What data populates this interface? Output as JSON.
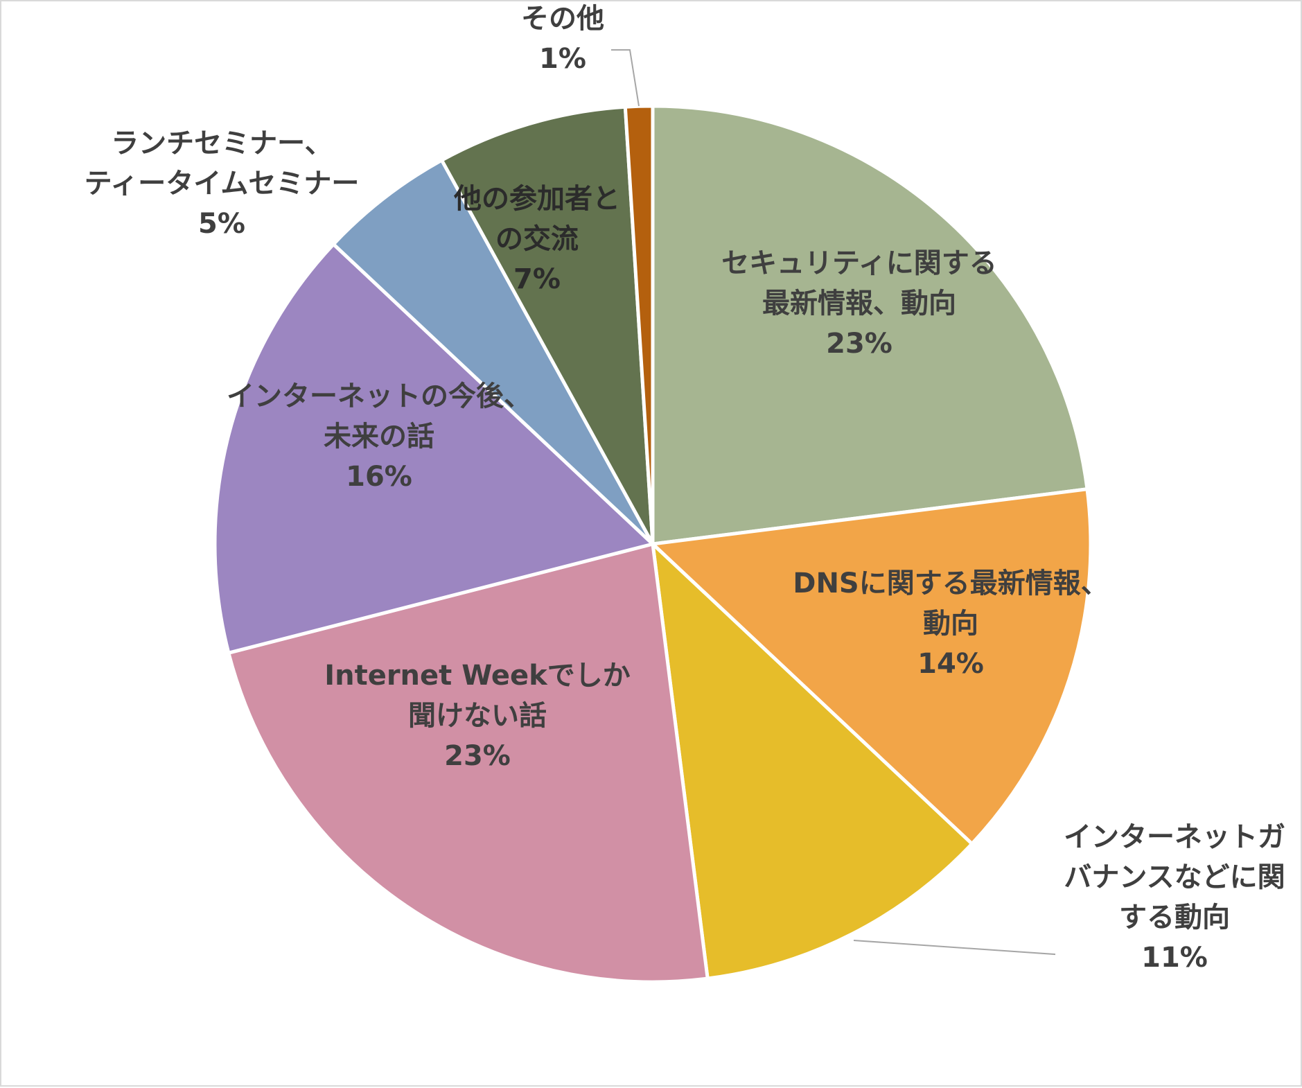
{
  "chart_data": {
    "type": "pie",
    "title": "",
    "slices": [
      {
        "label_lines": [
          "セキュリティに関する",
          "最新情報、動向"
        ],
        "percent_label": "23%",
        "value": 23,
        "color": "#a6b591"
      },
      {
        "label_lines": [
          "DNSに関する最新情報、",
          "動向"
        ],
        "percent_label": "14%",
        "value": 14,
        "color": "#f2a548"
      },
      {
        "label_lines": [
          "インターネットガ",
          "バナンスなどに関",
          "する動向"
        ],
        "percent_label": "11%",
        "value": 11,
        "color": "#e6bd2a"
      },
      {
        "label_lines": [
          "Internet Weekでしか",
          "聞けない話"
        ],
        "percent_label": "23%",
        "value": 23,
        "color": "#d190a5"
      },
      {
        "label_lines": [
          "インターネットの今後、",
          "未来の話"
        ],
        "percent_label": "16%",
        "value": 16,
        "color": "#9c86c1"
      },
      {
        "label_lines": [
          "ランチセミナー、",
          "ティータイムセミナー"
        ],
        "percent_label": "5%",
        "value": 5,
        "color": "#7f9fc2"
      },
      {
        "label_lines": [
          "他の参加者と",
          "の交流"
        ],
        "percent_label": "7%",
        "value": 7,
        "color": "#63734f"
      },
      {
        "label_lines": [
          "その他"
        ],
        "percent_label": "1%",
        "value": 1,
        "color": "#b4600e"
      }
    ]
  }
}
